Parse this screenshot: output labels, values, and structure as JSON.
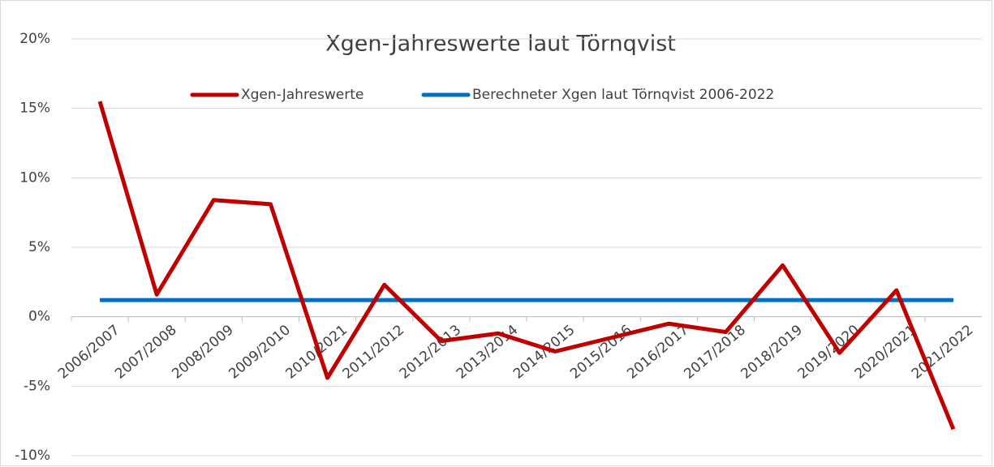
{
  "chart_data": {
    "type": "line",
    "title": "Xgen-Jahreswerte laut Törnqvist",
    "categories": [
      "2006/2007",
      "2007/2008",
      "2008/2009",
      "2009/2010",
      "2010/2021",
      "2011/2012",
      "2012/2013",
      "2013/2014",
      "2014/2015",
      "2015/2016",
      "2016/2017",
      "2017/2018",
      "2018/2019",
      "2019/2020",
      "2020/2021",
      "2021/2022"
    ],
    "series": [
      {
        "name": "Xgen-Jahreswerte",
        "color": "#c00000",
        "values": [
          15.5,
          1.6,
          8.4,
          8.1,
          -4.4,
          2.3,
          -1.75,
          -1.2,
          -2.5,
          -1.5,
          -0.5,
          -1.1,
          3.7,
          -2.6,
          1.9,
          -8.1
        ]
      },
      {
        "name": "Berechneter Xgen laut Törnqvist 2006-2022",
        "color": "#0070c0",
        "values": [
          1.2,
          1.2,
          1.2,
          1.2,
          1.2,
          1.2,
          1.2,
          1.2,
          1.2,
          1.2,
          1.2,
          1.2,
          1.2,
          1.2,
          1.2,
          1.2
        ]
      }
    ],
    "ylim": [
      -10,
      20
    ],
    "yticks": [
      {
        "value": -10,
        "label": "-10%"
      },
      {
        "value": -5,
        "label": "-5%"
      },
      {
        "value": 0,
        "label": "0%"
      },
      {
        "value": 5,
        "label": "5%"
      },
      {
        "value": 10,
        "label": "10%"
      },
      {
        "value": 15,
        "label": "15%"
      },
      {
        "value": 20,
        "label": "20%"
      }
    ],
    "grid": true,
    "legend": "top"
  }
}
